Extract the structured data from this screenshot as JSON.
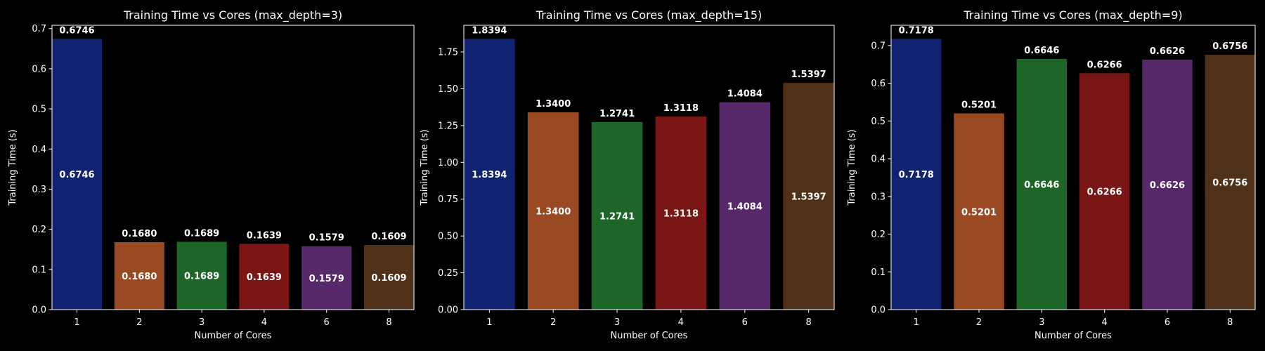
{
  "figure": {
    "background": "#000000",
    "foreground": "#ffffff"
  },
  "chart_data": [
    {
      "type": "bar",
      "title": "Training Time vs Cores (max_depth=3)",
      "xlabel": "Number of Cores",
      "ylabel": "Training Time (s)",
      "categories": [
        "1",
        "2",
        "3",
        "4",
        "6",
        "8"
      ],
      "values": [
        0.6746,
        0.168,
        0.1689,
        0.1639,
        0.1579,
        0.1609
      ],
      "value_labels": [
        "0.6746",
        "0.1680",
        "0.1689",
        "0.1639",
        "0.1579",
        "0.1609"
      ],
      "ylim": [
        0,
        0.7083
      ],
      "yticks": [
        0.0,
        0.1,
        0.2,
        0.3,
        0.4,
        0.5,
        0.6,
        0.7
      ],
      "ytick_labels": [
        "0.0",
        "0.1",
        "0.2",
        "0.3",
        "0.4",
        "0.5",
        "0.6",
        "0.7"
      ],
      "colors": [
        "#0f2370",
        "#9a4a22",
        "#1d6627",
        "#7a1614",
        "#57296a",
        "#4f311a"
      ],
      "grid": false,
      "legend": "none"
    },
    {
      "type": "bar",
      "title": "Training Time vs Cores (max_depth=15)",
      "xlabel": "Number of Cores",
      "ylabel": "Training Time (s)",
      "categories": [
        "1",
        "2",
        "3",
        "4",
        "6",
        "8"
      ],
      "values": [
        1.8394,
        1.34,
        1.2741,
        1.3118,
        1.4084,
        1.5397
      ],
      "value_labels": [
        "1.8394",
        "1.3400",
        "1.2741",
        "1.3118",
        "1.4084",
        "1.5397"
      ],
      "ylim": [
        0,
        1.9314
      ],
      "yticks": [
        0.0,
        0.25,
        0.5,
        0.75,
        1.0,
        1.25,
        1.5,
        1.75
      ],
      "ytick_labels": [
        "0.00",
        "0.25",
        "0.50",
        "0.75",
        "1.00",
        "1.25",
        "1.50",
        "1.75"
      ],
      "colors": [
        "#0f2370",
        "#9a4a22",
        "#1d6627",
        "#7a1614",
        "#57296a",
        "#4f311a"
      ],
      "grid": false,
      "legend": "none"
    },
    {
      "type": "bar",
      "title": "Training Time vs Cores (max_depth=9)",
      "xlabel": "Number of Cores",
      "ylabel": "Training Time (s)",
      "categories": [
        "1",
        "2",
        "3",
        "4",
        "6",
        "8"
      ],
      "values": [
        0.7178,
        0.5201,
        0.6646,
        0.6266,
        0.6626,
        0.6756
      ],
      "value_labels": [
        "0.7178",
        "0.5201",
        "0.6646",
        "0.6266",
        "0.6626",
        "0.6756"
      ],
      "ylim": [
        0,
        0.7537
      ],
      "yticks": [
        0.0,
        0.1,
        0.2,
        0.3,
        0.4,
        0.5,
        0.6,
        0.7
      ],
      "ytick_labels": [
        "0.0",
        "0.1",
        "0.2",
        "0.3",
        "0.4",
        "0.5",
        "0.6",
        "0.7"
      ],
      "colors": [
        "#0f2370",
        "#9a4a22",
        "#1d6627",
        "#7a1614",
        "#57296a",
        "#4f311a"
      ],
      "grid": false,
      "legend": "none"
    }
  ]
}
